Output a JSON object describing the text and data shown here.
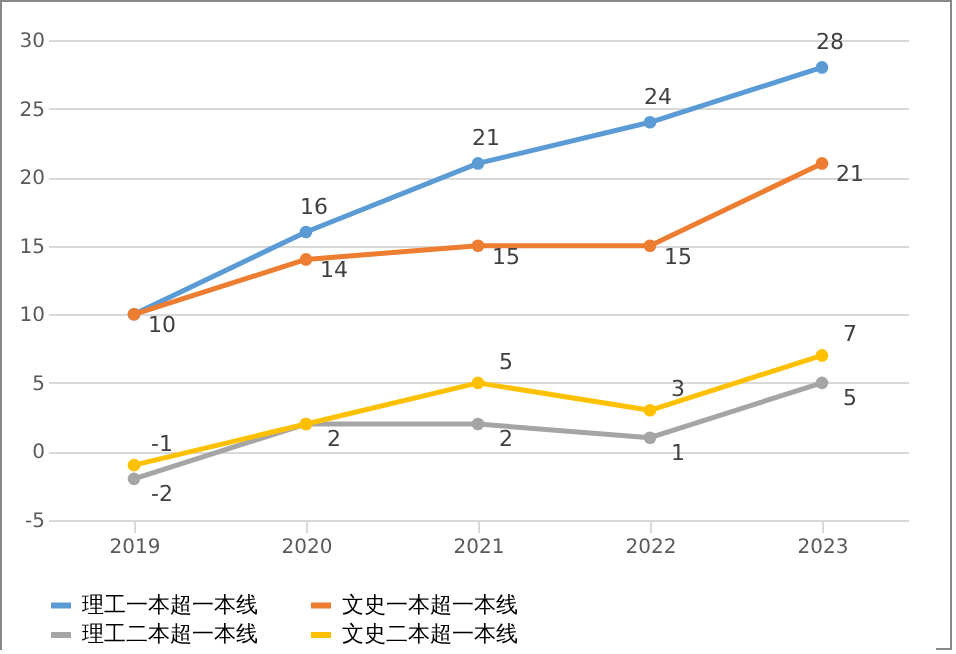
{
  "chart_data": {
    "type": "line",
    "categories": [
      "2019",
      "2020",
      "2021",
      "2022",
      "2023"
    ],
    "series": [
      {
        "name": "理工一本超一本线",
        "color": "#5b9bd5",
        "values": [
          10,
          16,
          21,
          24,
          28
        ],
        "value_labels": [
          null,
          "16",
          "21",
          "24",
          "28"
        ]
      },
      {
        "name": "文史一本超一本线",
        "color": "#ed7d31",
        "values": [
          10,
          14,
          15,
          15,
          21
        ],
        "value_labels": [
          "10",
          "14",
          "15",
          "15",
          "21"
        ]
      },
      {
        "name": "理工二本超一本线",
        "color": "#a5a5a5",
        "values": [
          -2,
          2,
          2,
          1,
          5
        ],
        "value_labels": [
          "-2",
          "2",
          "2",
          "1",
          "5"
        ]
      },
      {
        "name": "文史二本超一本线",
        "color": "#ffc000",
        "values": [
          -1,
          2,
          5,
          3,
          7
        ],
        "value_labels": [
          "-1",
          null,
          "5",
          "3",
          "7"
        ]
      }
    ],
    "ylim": [
      -5,
      30
    ],
    "yticks": [
      -5,
      0,
      5,
      10,
      15,
      20,
      25,
      30
    ],
    "grid": "y",
    "legend": "bottom",
    "marker": "circle",
    "line_style": "solid"
  }
}
